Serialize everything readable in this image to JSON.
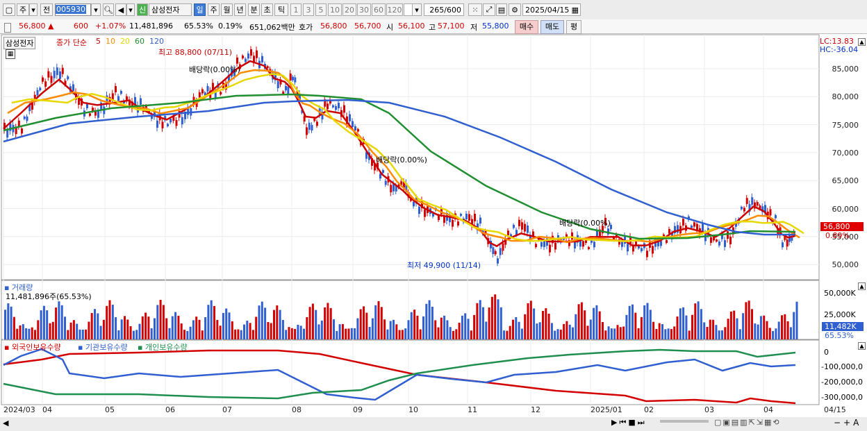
{
  "toolbar": {
    "type_label": "주",
    "prev_label": "전",
    "stock_code": "005930",
    "credit_badge": "신",
    "stock_name": "삼성전자",
    "periods": [
      "일",
      "주",
      "월",
      "년",
      "분",
      "초",
      "틱"
    ],
    "active_period": "일",
    "intervals": [
      "1",
      "3",
      "5",
      "10",
      "20",
      "30",
      "60",
      "120"
    ],
    "count": "265",
    "count_max": "/600",
    "date": "2025/04/15"
  },
  "quote": {
    "price": "56,800",
    "change": "600",
    "change_pct": "+1.07%",
    "volume": "11,481,896",
    "vol_ratio": "65.53%",
    "turnover": "0.19%",
    "amount": "651,062백만",
    "ask_label": "호가",
    "ask": "56,800",
    "bid": "56,700",
    "open_label": "시",
    "open": "56,100",
    "high_label": "고",
    "high": "57,100",
    "low_label": "저",
    "low": "55,800",
    "buy_label": "매수",
    "sell_label": "매도",
    "eval_label": "평"
  },
  "price_pane": {
    "stock_tag": "삼성전자",
    "legend_prefix": "종가 단순",
    "ma_labels": [
      "5",
      "10",
      "20",
      "60",
      "120"
    ],
    "ma_colors": [
      "#cc0000",
      "#ff8c00",
      "#e6d800",
      "#1f8f2f",
      "#2f5fd0"
    ],
    "lc": "LC:13.83",
    "hc": "HC:-36.04",
    "max_label": "최고 88,800 (07/11)",
    "min_label": "최저 49,900 (11/14)",
    "dividend_labels": [
      "배당락(0.00%)",
      "배당락(0.00%)",
      "배당락(0.00%)"
    ],
    "yaxis": [
      "85,000",
      "80,000",
      "75,000",
      "70,000",
      "65,000",
      "60,000",
      "55,000",
      "50,000"
    ],
    "current_price_tag": "56,800",
    "current_pct_tag": "0.89%"
  },
  "volume_pane": {
    "title": "거래량",
    "value": "11,481,896주(65.53%)",
    "yaxis": [
      "50,000K",
      "25,000K"
    ],
    "current_tag": "11,482K",
    "current_pct": "65.53%"
  },
  "holdings_pane": {
    "legend": [
      "외국인보유수량",
      "기관보유수량",
      "개인보유수량"
    ],
    "colors": [
      "#d40000",
      "#2f5fd0",
      "#1f8f4f"
    ],
    "yaxis": [
      "0",
      "-100,000,0",
      "-200,000,0",
      "-300,000,0"
    ]
  },
  "xaxis": [
    "2024/03",
    "04",
    "05",
    "06",
    "07",
    "08",
    "09",
    "10",
    "11",
    "12",
    "2025/01",
    "02",
    "03",
    "04",
    "04/15"
  ]
}
